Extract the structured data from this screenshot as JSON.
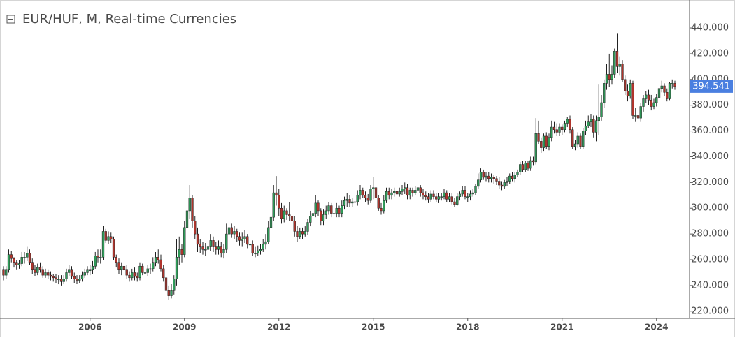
{
  "chart_data": {
    "type": "candlestick",
    "title": "EUR/HUF, M, Real-time Currencies",
    "categories": [
      null,
      null,
      null,
      null,
      null,
      null,
      null,
      null,
      null,
      null,
      null,
      null,
      null,
      null,
      null,
      null,
      null,
      null,
      null,
      null,
      null,
      null,
      null,
      null,
      null,
      null,
      null,
      null,
      null,
      null,
      null,
      null,
      null,
      "2006",
      null,
      null,
      null,
      null,
      null,
      null,
      null,
      null,
      null,
      null,
      null,
      null,
      null,
      null,
      null,
      null,
      null,
      null,
      null,
      null,
      null,
      null,
      null,
      null,
      null,
      null,
      null,
      null,
      null,
      null,
      null,
      null,
      null,
      null,
      null,
      "2009",
      null,
      null,
      null,
      null,
      null,
      null,
      null,
      null,
      null,
      null,
      null,
      null,
      null,
      null,
      null,
      null,
      null,
      null,
      null,
      null,
      null,
      null,
      null,
      null,
      null,
      null,
      null,
      null,
      null,
      null,
      null,
      null,
      null,
      null,
      null,
      "2012",
      null,
      null,
      null,
      null,
      null,
      null,
      null,
      null,
      null,
      null,
      null,
      null,
      null,
      null,
      null,
      null,
      null,
      null,
      null,
      null,
      null,
      null,
      null,
      null,
      null,
      null,
      null,
      null,
      null,
      null,
      null,
      null,
      null,
      null,
      null,
      "2015",
      null,
      null,
      null,
      null,
      null,
      null,
      null,
      null,
      null,
      null,
      null,
      null,
      null,
      null,
      null,
      null,
      null,
      null,
      null,
      null,
      null,
      null,
      null,
      null,
      null,
      null,
      null,
      null,
      null,
      null,
      null,
      null,
      null,
      null,
      null,
      "2018",
      null,
      null,
      null,
      null,
      null,
      null,
      null,
      null,
      null,
      null,
      null,
      null,
      null,
      null,
      null,
      null,
      null,
      null,
      null,
      null,
      null,
      null,
      null,
      null,
      null,
      null,
      null,
      null,
      null,
      null,
      null,
      null,
      null,
      null,
      null,
      "2021",
      null,
      null,
      null,
      null,
      null,
      null,
      null,
      null,
      null,
      null,
      null,
      null,
      null,
      null,
      null,
      null,
      null,
      null,
      null,
      null,
      null,
      null,
      null,
      null,
      null,
      null,
      null,
      null,
      null,
      null,
      null,
      null,
      null,
      null,
      null,
      "2024",
      null,
      null,
      null,
      null,
      null,
      null,
      null
    ],
    "open": [
      252,
      248,
      252,
      264,
      261,
      258,
      256,
      257,
      262,
      262,
      265,
      258,
      252,
      250,
      254,
      252,
      248,
      250,
      248,
      247,
      246,
      245,
      245,
      243,
      245,
      250,
      252,
      247,
      245,
      244,
      245,
      248,
      250,
      252,
      252,
      255,
      263,
      262,
      262,
      282,
      275,
      278,
      276,
      262,
      258,
      252,
      255,
      252,
      248,
      246,
      250,
      247,
      246,
      255,
      250,
      250,
      253,
      253,
      258,
      262,
      260,
      253,
      246,
      236,
      232,
      236,
      245,
      262,
      268,
      264,
      285,
      298,
      308,
      290,
      280,
      272,
      270,
      268,
      268,
      270,
      275,
      270,
      268,
      270,
      265,
      268,
      280,
      285,
      280,
      282,
      278,
      275,
      276,
      278,
      272,
      272,
      265,
      265,
      267,
      268,
      272,
      274,
      285,
      293,
      312,
      310,
      300,
      292,
      298,
      295,
      294,
      290,
      282,
      278,
      282,
      280,
      282,
      289,
      294,
      296,
      304,
      298,
      290,
      295,
      298,
      302,
      296,
      296,
      300,
      296,
      302,
      306,
      307,
      304,
      305,
      305,
      310,
      314,
      310,
      308,
      306,
      315,
      316,
      308,
      300,
      298,
      306,
      313,
      310,
      312,
      313,
      311,
      313,
      315,
      316,
      310,
      314,
      312,
      314,
      316,
      312,
      310,
      309,
      307,
      311,
      309,
      307,
      309,
      309,
      312,
      307,
      309,
      305,
      303,
      309,
      311,
      314,
      309,
      309,
      311,
      312,
      317,
      322,
      328,
      324,
      325,
      323,
      324,
      323,
      321,
      318,
      317,
      320,
      321,
      325,
      323,
      326,
      328,
      334,
      330,
      335,
      331,
      337,
      336,
      358,
      352,
      347,
      356,
      348,
      355,
      363,
      361,
      359,
      363,
      361,
      366,
      369,
      361,
      348,
      350,
      356,
      348,
      360,
      364,
      367,
      369,
      359,
      368,
      371,
      382,
      397,
      404,
      400,
      404,
      422,
      410,
      412,
      400,
      391,
      387,
      397,
      372,
      372,
      370,
      379,
      385,
      388,
      384,
      379,
      382,
      386,
      393,
      395,
      390,
      385,
      397,
      397
    ],
    "high": [
      255,
      255,
      268,
      267,
      262,
      260,
      260,
      266,
      266,
      270,
      268,
      261,
      256,
      257,
      258,
      255,
      253,
      252,
      251,
      249,
      249,
      248,
      248,
      248,
      253,
      256,
      255,
      250,
      248,
      248,
      251,
      253,
      255,
      256,
      259,
      266,
      268,
      268,
      286,
      284,
      282,
      281,
      278,
      264,
      261,
      258,
      258,
      256,
      251,
      253,
      254,
      250,
      258,
      257,
      254,
      256,
      257,
      262,
      266,
      268,
      264,
      256,
      249,
      240,
      241,
      248,
      276,
      278,
      272,
      290,
      303,
      318,
      310,
      294,
      285,
      276,
      274,
      273,
      274,
      280,
      278,
      274,
      275,
      274,
      272,
      288,
      290,
      288,
      286,
      284,
      281,
      281,
      283,
      280,
      278,
      275,
      270,
      271,
      272,
      276,
      280,
      290,
      298,
      318,
      325,
      315,
      304,
      302,
      300,
      305,
      300,
      294,
      286,
      285,
      285,
      286,
      292,
      298,
      300,
      310,
      306,
      300,
      299,
      302,
      305,
      304,
      300,
      304,
      302,
      306,
      309,
      312,
      310,
      308,
      309,
      314,
      318,
      316,
      313,
      311,
      318,
      324,
      320,
      310,
      304,
      310,
      316,
      316,
      315,
      316,
      316,
      316,
      318,
      320,
      319,
      316,
      316,
      317,
      319,
      318,
      315,
      313,
      312,
      314,
      314,
      312,
      312,
      312,
      315,
      314,
      312,
      312,
      308,
      312,
      313,
      317,
      317,
      312,
      314,
      315,
      319,
      327,
      331,
      330,
      328,
      328,
      327,
      326,
      325,
      324,
      321,
      322,
      324,
      327,
      328,
      328,
      330,
      336,
      337,
      337,
      337,
      340,
      340,
      370,
      368,
      355,
      358,
      359,
      358,
      368,
      367,
      366,
      366,
      365,
      368,
      371,
      372,
      363,
      353,
      359,
      358,
      362,
      368,
      372,
      373,
      372,
      372,
      396,
      388,
      400,
      412,
      420,
      411,
      424,
      436,
      418,
      415,
      403,
      396,
      400,
      399,
      378,
      378,
      382,
      388,
      391,
      392,
      388,
      385,
      389,
      396,
      399,
      397,
      393,
      398,
      400,
      399
    ],
    "low": [
      244,
      245,
      250,
      258,
      254,
      252,
      253,
      255,
      257,
      259,
      256,
      249,
      247,
      248,
      250,
      246,
      246,
      245,
      244,
      243,
      242,
      241,
      240,
      241,
      243,
      247,
      245,
      242,
      241,
      242,
      243,
      246,
      248,
      248,
      249,
      253,
      258,
      257,
      260,
      273,
      272,
      273,
      260,
      254,
      249,
      248,
      250,
      245,
      243,
      244,
      244,
      243,
      244,
      248,
      246,
      247,
      249,
      251,
      255,
      257,
      251,
      243,
      233,
      229,
      230,
      233,
      240,
      256,
      258,
      262,
      280,
      292,
      285,
      276,
      266,
      265,
      264,
      263,
      264,
      267,
      266,
      264,
      264,
      262,
      261,
      265,
      276,
      277,
      276,
      274,
      271,
      270,
      273,
      269,
      267,
      263,
      262,
      263,
      264,
      266,
      268,
      272,
      282,
      290,
      302,
      294,
      288,
      289,
      291,
      290,
      284,
      278,
      274,
      276,
      276,
      278,
      279,
      286,
      289,
      293,
      294,
      287,
      287,
      292,
      295,
      293,
      292,
      293,
      293,
      293,
      299,
      301,
      301,
      301,
      302,
      302,
      307,
      308,
      305,
      303,
      304,
      307,
      304,
      298,
      295,
      296,
      304,
      307,
      307,
      309,
      308,
      309,
      310,
      311,
      307,
      307,
      309,
      310,
      311,
      309,
      307,
      306,
      304,
      305,
      307,
      305,
      304,
      306,
      307,
      305,
      305,
      303,
      301,
      302,
      306,
      309,
      307,
      305,
      306,
      309,
      310,
      315,
      320,
      322,
      321,
      320,
      320,
      319,
      318,
      315,
      314,
      315,
      317,
      319,
      321,
      320,
      324,
      326,
      328,
      328,
      329,
      329,
      333,
      334,
      350,
      343,
      344,
      346,
      345,
      352,
      358,
      356,
      356,
      357,
      359,
      363,
      358,
      346,
      345,
      347,
      346,
      346,
      357,
      362,
      363,
      355,
      352,
      357,
      368,
      378,
      392,
      394,
      396,
      401,
      405,
      403,
      398,
      388,
      383,
      385,
      369,
      367,
      366,
      367,
      375,
      382,
      380,
      376,
      377,
      379,
      384,
      390,
      387,
      383,
      384,
      393,
      392
    ],
    "close": [
      248,
      252,
      264,
      261,
      258,
      256,
      257,
      262,
      262,
      265,
      258,
      252,
      250,
      254,
      252,
      248,
      250,
      248,
      247,
      246,
      245,
      245,
      243,
      245,
      250,
      252,
      247,
      245,
      244,
      245,
      248,
      250,
      252,
      252,
      255,
      263,
      262,
      262,
      282,
      275,
      278,
      276,
      262,
      258,
      252,
      255,
      252,
      248,
      246,
      250,
      247,
      246,
      255,
      250,
      250,
      253,
      253,
      258,
      262,
      260,
      253,
      246,
      236,
      232,
      236,
      245,
      262,
      268,
      264,
      285,
      298,
      308,
      290,
      280,
      272,
      270,
      268,
      268,
      270,
      275,
      270,
      268,
      270,
      265,
      268,
      280,
      285,
      280,
      282,
      278,
      275,
      276,
      278,
      272,
      272,
      265,
      265,
      267,
      268,
      272,
      274,
      285,
      293,
      312,
      310,
      300,
      292,
      298,
      295,
      294,
      290,
      282,
      278,
      282,
      280,
      282,
      289,
      294,
      296,
      304,
      298,
      290,
      295,
      298,
      302,
      296,
      296,
      300,
      296,
      302,
      306,
      307,
      304,
      305,
      305,
      310,
      314,
      310,
      308,
      306,
      315,
      316,
      308,
      300,
      298,
      306,
      313,
      310,
      312,
      313,
      311,
      313,
      315,
      316,
      310,
      314,
      312,
      314,
      316,
      312,
      310,
      309,
      307,
      311,
      309,
      307,
      309,
      309,
      312,
      307,
      309,
      305,
      303,
      309,
      311,
      314,
      309,
      309,
      311,
      312,
      317,
      322,
      328,
      324,
      325,
      323,
      324,
      323,
      321,
      318,
      317,
      320,
      321,
      325,
      323,
      326,
      328,
      334,
      330,
      335,
      331,
      337,
      336,
      358,
      352,
      347,
      356,
      348,
      355,
      363,
      361,
      359,
      363,
      361,
      366,
      369,
      361,
      348,
      350,
      356,
      348,
      360,
      364,
      367,
      369,
      359,
      368,
      371,
      382,
      397,
      404,
      400,
      404,
      422,
      410,
      412,
      400,
      391,
      387,
      397,
      372,
      372,
      370,
      379,
      385,
      388,
      384,
      379,
      382,
      386,
      393,
      395,
      390,
      385,
      397,
      397,
      394.541
    ],
    "up_color": "#2f9e5a",
    "down_color": "#b0342c",
    "last_price_color": "#4a7fe0",
    "ylim": [
      215,
      459
    ],
    "yticks": [
      {
        "value": 220,
        "label": "220.000"
      },
      {
        "value": 240,
        "label": "240.000"
      },
      {
        "value": 260,
        "label": "260.000"
      },
      {
        "value": 280,
        "label": "280.000"
      },
      {
        "value": 300,
        "label": "300.000"
      },
      {
        "value": 320,
        "label": "320.000"
      },
      {
        "value": 340,
        "label": "340.000"
      },
      {
        "value": 360,
        "label": "360.000"
      },
      {
        "value": 380,
        "label": "380.000"
      },
      {
        "value": 400,
        "label": "400.000"
      },
      {
        "value": 420,
        "label": "420.000"
      },
      {
        "value": 440,
        "label": "440.000"
      }
    ]
  }
}
